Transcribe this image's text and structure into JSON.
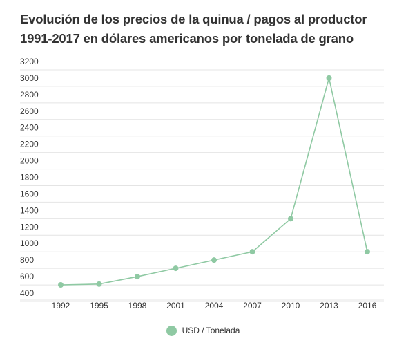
{
  "title": "Evolución de los precios de la quinua / pagos al productor 1991-2017 en dólares americanos por tonelada de grano",
  "colors": {
    "series": "#8fc9a3",
    "text": "#333333",
    "grid": "#e4e4e4"
  },
  "chart_data": {
    "type": "line",
    "title": "Evolución de los precios de la quinua / pagos al productor 1991-2017 en dólares americanos por tonelada de grano",
    "xlabel": "",
    "ylabel": "",
    "categories": [
      "1992",
      "1995",
      "1998",
      "2001",
      "2004",
      "2007",
      "2010",
      "2013",
      "2016"
    ],
    "series": [
      {
        "name": "USD / Tonelada",
        "values": [
          500,
          510,
          600,
          700,
          800,
          900,
          1300,
          3000,
          900
        ]
      }
    ],
    "yticks": [
      400,
      600,
      800,
      1000,
      1200,
      1400,
      1600,
      1800,
      2000,
      2200,
      2400,
      2600,
      2800,
      3000,
      3200
    ],
    "ylim": [
      400,
      3200
    ],
    "grid": true,
    "legend": "bottom-center"
  }
}
